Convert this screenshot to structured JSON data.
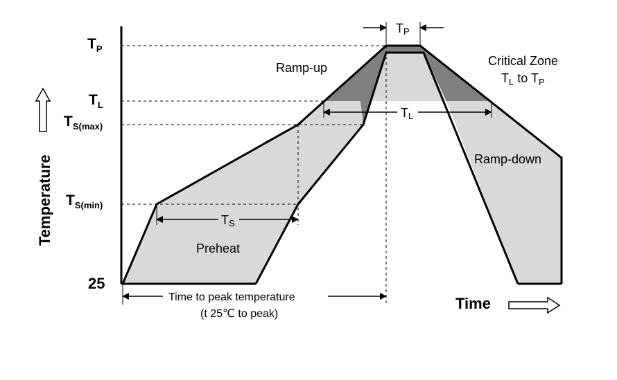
{
  "y_axis": {
    "title": "Temperature",
    "ticks": {
      "tp": {
        "main": "T",
        "sub": "P"
      },
      "tl": {
        "main": "T",
        "sub": "L"
      },
      "ts_max": {
        "main": "T",
        "sub": "S(max)"
      },
      "ts_min": {
        "main": "T",
        "sub": "S(min)"
      },
      "base": "25"
    }
  },
  "x_axis": {
    "title": "Time"
  },
  "regions": {
    "ramp_up": "Ramp-up",
    "ramp_down": "Ramp-down",
    "preheat": "Preheat",
    "critical_zone_line1": "Critical Zone",
    "critical_zone_line2": {
      "t1_main": "T",
      "t1_sub": "L",
      "to": " to ",
      "t2_main": "T",
      "t2_sub": "P"
    }
  },
  "dimensions": {
    "tp": {
      "main": "T",
      "sub": "P"
    },
    "tl": {
      "main": "T",
      "sub": "L"
    },
    "ts": {
      "main": "T",
      "sub": "S"
    },
    "time_to_peak_line1": "Time to peak temperature",
    "time_to_peak_line2": "(t 25℃ to peak)"
  },
  "colors": {
    "light_band": "#d9d9d9",
    "critical_band": "#808080",
    "line": "#000000"
  }
}
